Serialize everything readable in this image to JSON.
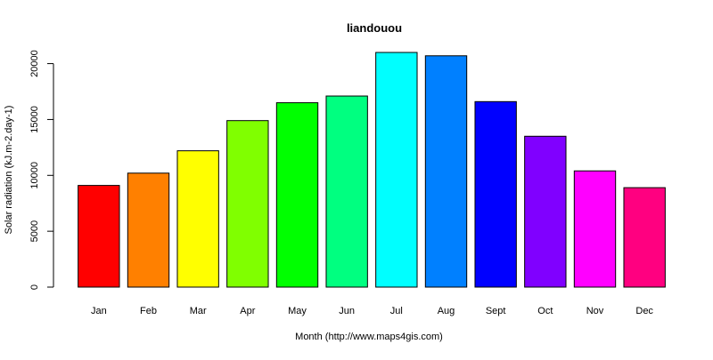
{
  "chart_data": {
    "type": "bar",
    "title": "liandouou",
    "xlabel": "Month (http://www.maps4gis.com)",
    "ylabel": "Solar radiation (kJ.m-2.day-1)",
    "categories": [
      "Jan",
      "Feb",
      "Mar",
      "Apr",
      "May",
      "Jun",
      "Jul",
      "Aug",
      "Sept",
      "Oct",
      "Nov",
      "Dec"
    ],
    "values": [
      9100,
      10200,
      12200,
      14900,
      16500,
      17100,
      21000,
      20700,
      16600,
      13500,
      10400,
      8900
    ],
    "colors": [
      "#FF0000",
      "#FF8000",
      "#FFFF00",
      "#80FF00",
      "#00FF00",
      "#00FF80",
      "#00FFFF",
      "#0080FF",
      "#0000FF",
      "#8000FF",
      "#FF00FF",
      "#FF0080"
    ],
    "yticks": [
      0,
      5000,
      10000,
      15000,
      20000
    ],
    "ytick_labels": [
      "0",
      "5000",
      "10000",
      "15000",
      "20000"
    ],
    "ylim": [
      0,
      21000
    ],
    "grid": false,
    "legend": "none"
  }
}
